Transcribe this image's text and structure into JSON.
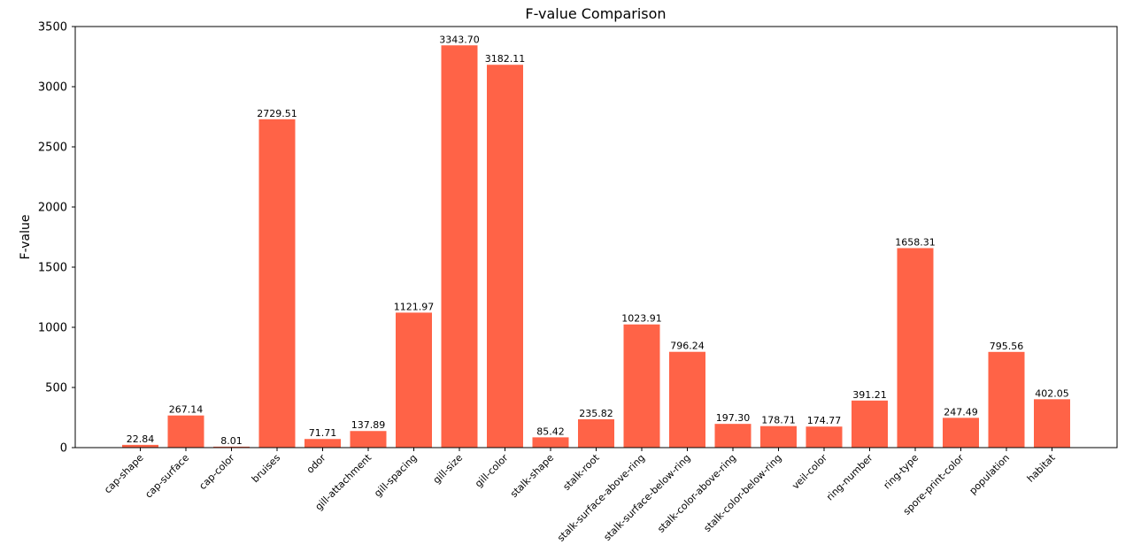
{
  "chart_data": {
    "type": "bar",
    "title": "F-value Comparison",
    "xlabel": "",
    "ylabel": "F-value",
    "ylim": [
      0,
      3500
    ],
    "yticks": [
      0,
      500,
      1000,
      1500,
      2000,
      2500,
      3000,
      3500
    ],
    "bar_color": "#ff6347",
    "grid": false,
    "categories": [
      "cap-shape",
      "cap-surface",
      "cap-color",
      "bruises",
      "odor",
      "gill-attachment",
      "gill-spacing",
      "gill-size",
      "gill-color",
      "stalk-shape",
      "stalk-root",
      "stalk-surface-above-ring",
      "stalk-surface-below-ring",
      "stalk-color-above-ring",
      "stalk-color-below-ring",
      "veil-color",
      "ring-number",
      "ring-type",
      "spore-print-color",
      "population",
      "habitat"
    ],
    "values": [
      22.84,
      267.14,
      8.01,
      2729.51,
      71.71,
      137.89,
      1121.97,
      3343.7,
      3182.11,
      85.42,
      235.82,
      1023.91,
      796.24,
      197.3,
      178.71,
      174.77,
      391.21,
      1658.31,
      247.49,
      795.56,
      402.05
    ],
    "data_labels": [
      "22.84",
      "267.14",
      "8.01",
      "2729.51",
      "71.71",
      "137.89",
      "1121.97",
      "3343.70",
      "3182.11",
      "85.42",
      "235.82",
      "1023.91",
      "796.24",
      "197.30",
      "178.71",
      "174.77",
      "391.21",
      "1658.31",
      "247.49",
      "795.56",
      "402.05"
    ]
  }
}
